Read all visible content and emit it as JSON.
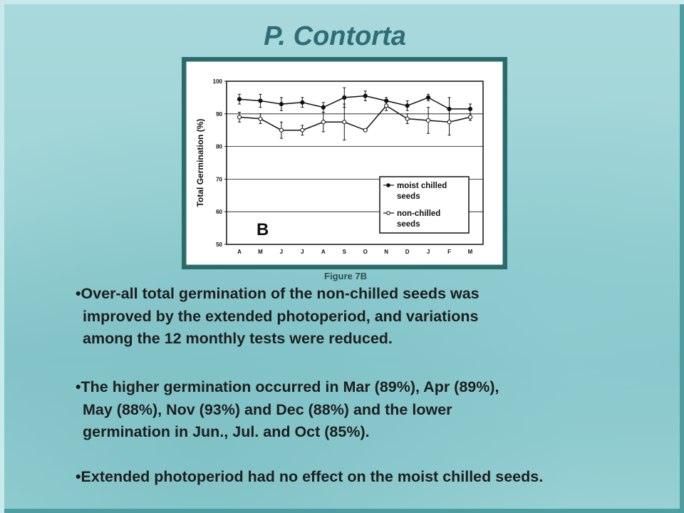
{
  "title": "P. Contorta",
  "chart_data": {
    "type": "line",
    "y_label": "Total Germination (%)",
    "panel_label": "B",
    "categories": [
      "A",
      "M",
      "J",
      "J",
      "A",
      "S",
      "O",
      "N",
      "D",
      "J",
      "F",
      "M"
    ],
    "series": [
      {
        "name": "moist chilled seeds",
        "color": "#111111",
        "marker": "filled",
        "values": [
          94.5,
          94,
          93,
          93.5,
          92,
          95,
          95.5,
          94,
          92.5,
          95,
          91.5,
          91.5
        ],
        "errors": [
          1.5,
          2,
          2,
          1.5,
          1.5,
          3,
          1.5,
          1,
          1.5,
          1,
          3.5,
          1.5
        ]
      },
      {
        "name": "non-chilled seeds",
        "color": "#111111",
        "marker": "open",
        "values": [
          89,
          88.5,
          85,
          85,
          87.5,
          87.5,
          85,
          92.5,
          88.5,
          88,
          87.5,
          89
        ],
        "errors": [
          1.5,
          1.5,
          2.5,
          1.5,
          3,
          5.5,
          0,
          1.5,
          1.5,
          4,
          4,
          1
        ]
      }
    ],
    "ylim": [
      50,
      100
    ],
    "yticks": [
      50,
      60,
      70,
      80,
      90,
      100
    ],
    "grid": true,
    "legend": "lower right"
  },
  "caption": "Figure 7B",
  "bullets": [
    [
      "Over-all total germination of the non-chilled seeds was",
      "improved by the extended photoperiod, and variations",
      "among the 12 monthly tests were reduced."
    ],
    [
      "The higher germination occurred in Mar (89%), Apr (89%),",
      "May (88%), Nov (93%) and Dec (88%) and the lower",
      "germination in Jun., Jul. and Oct (85%)."
    ],
    [
      "Extended photoperiod had no effect on the moist chilled seeds."
    ]
  ]
}
